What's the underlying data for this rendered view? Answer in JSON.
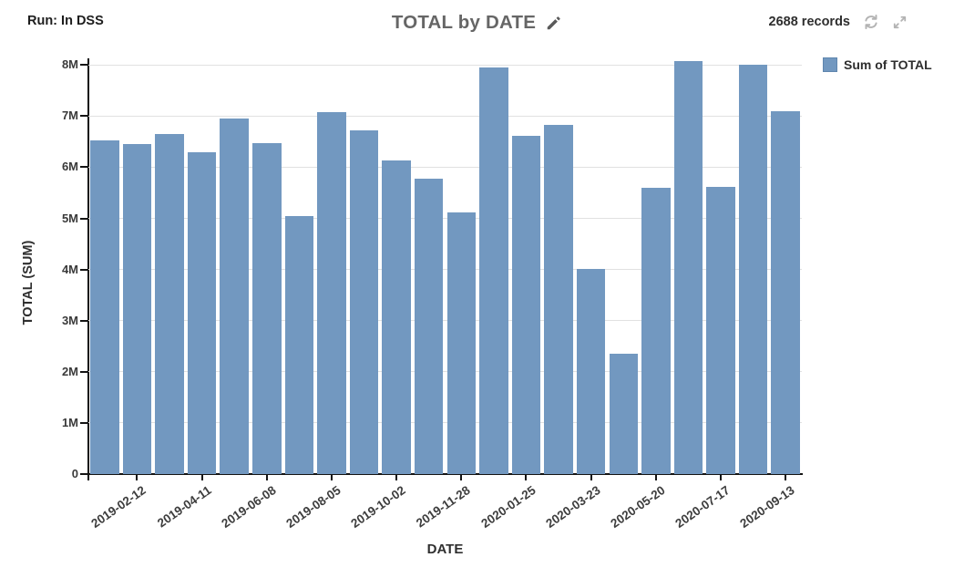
{
  "header": {
    "run_label": "Run: In DSS",
    "title": "TOTAL by DATE",
    "records": "2688 records",
    "icons": {
      "edit": "pencil-icon",
      "refresh": "refresh-icon",
      "maximize": "expand-icon"
    }
  },
  "legend": {
    "label": "Sum of TOTAL",
    "swatch_color": "#7298c0"
  },
  "colors": {
    "bar": "#7298c0",
    "axis": "#141414",
    "gridline": "#e1e1e1",
    "icon_gray": "#b3b3b3",
    "title_gray": "#666666"
  },
  "chart_data": {
    "type": "bar",
    "title": "TOTAL by DATE",
    "series_name": "Sum of TOTAL",
    "xlabel": "DATE",
    "ylabel": "TOTAL (SUM)",
    "ylim_millions": [
      0,
      8
    ],
    "grid": true,
    "legend_position": "top-right",
    "bar_color": "#7298c0",
    "y_tick_labels": [
      "0",
      "1M",
      "2M",
      "3M",
      "4M",
      "5M",
      "6M",
      "7M",
      "8M"
    ],
    "values_millions": [
      6.52,
      6.45,
      6.65,
      6.3,
      6.95,
      6.48,
      5.05,
      7.08,
      6.72,
      6.13,
      5.78,
      5.12,
      7.95,
      6.62,
      6.82,
      4.02,
      2.35,
      5.6,
      8.08,
      5.62,
      8.0,
      7.1
    ],
    "x_tick_labels": [
      "2019-02-12",
      "2019-04-11",
      "2019-06-08",
      "2019-08-05",
      "2019-10-02",
      "2019-11-28",
      "2020-01-25",
      "2020-03-23",
      "2020-05-20",
      "2020-07-17",
      "2020-09-13"
    ],
    "x_tick_bar_indexes": [
      1,
      3,
      5,
      7,
      9,
      11,
      13,
      15,
      17,
      19,
      21
    ]
  }
}
